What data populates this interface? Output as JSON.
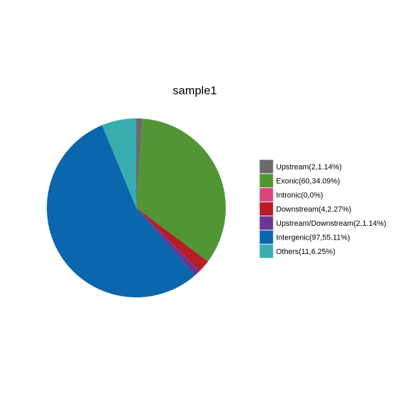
{
  "chart_data": {
    "type": "pie",
    "title": "sample1",
    "legend_position": "right",
    "slices": [
      {
        "label": "Upstream(2,1.14%)",
        "value": 2,
        "percent": 1.14,
        "color": "#6b6b6b"
      },
      {
        "label": "Exonic(60,34.09%)",
        "value": 60,
        "percent": 34.09,
        "color": "#529535"
      },
      {
        "label": "Intronic(0,0%)",
        "value": 0,
        "percent": 0,
        "color": "#d8457a"
      },
      {
        "label": "Downstream(4,2.27%)",
        "value": 4,
        "percent": 2.27,
        "color": "#b71d25"
      },
      {
        "label": "Upstream/Downstream(2,1.14%)",
        "value": 2,
        "percent": 1.14,
        "color": "#6a3595"
      },
      {
        "label": "Intergenic(97,55.11%)",
        "value": 97,
        "percent": 55.11,
        "color": "#0b66ad"
      },
      {
        "label": "Others(11,6.25%)",
        "value": 11,
        "percent": 6.25,
        "color": "#37adb0"
      }
    ]
  }
}
